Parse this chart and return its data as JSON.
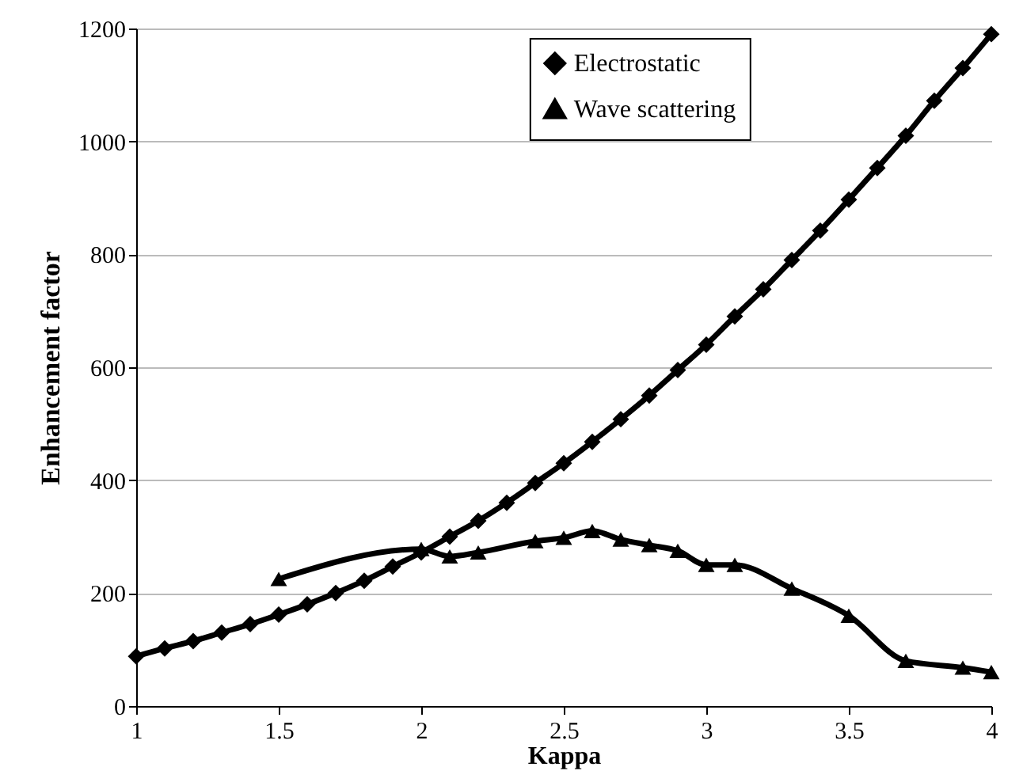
{
  "chart_data": {
    "type": "line",
    "xlabel": "Kappa",
    "ylabel": "Enhancement factor",
    "xlim": [
      1,
      4
    ],
    "xticks": [
      1,
      1.5,
      2,
      2.5,
      3,
      3.5,
      4
    ],
    "ylim": [
      0,
      1200
    ],
    "yticks": [
      0,
      200,
      400,
      600,
      800,
      1000,
      1200
    ],
    "grid": "y",
    "legend": "top",
    "line_style": "solid",
    "series": [
      {
        "name": "Electrostatic",
        "color": "#000000",
        "marker": "diamond",
        "x": [
          1,
          1.1,
          1.2,
          1.3,
          1.4,
          1.5,
          1.6,
          1.7,
          1.8,
          1.9,
          2,
          2.1,
          2.2,
          2.3,
          2.4,
          2.5,
          2.6,
          2.7,
          2.8,
          2.9,
          3,
          3.1,
          3.2,
          3.3,
          3.4,
          3.5,
          3.6,
          3.7,
          3.8,
          3.9,
          4
        ],
        "values": [
          88,
          102,
          115,
          130,
          145,
          162,
          180,
          200,
          222,
          247,
          272,
          300,
          328,
          360,
          395,
          430,
          468,
          508,
          550,
          595,
          640,
          690,
          738,
          790,
          842,
          897,
          953,
          1010,
          1072,
          1130,
          1190
        ]
      },
      {
        "name": "Wave scattering",
        "color": "#000000",
        "marker": "triangle",
        "x": [
          1.5,
          2,
          2.1,
          2.2,
          2.4,
          2.5,
          2.6,
          2.7,
          2.8,
          2.9,
          3,
          3.1,
          3.3,
          3.5,
          3.7,
          3.9,
          4
        ],
        "values": [
          225,
          278,
          265,
          272,
          292,
          298,
          310,
          295,
          285,
          275,
          250,
          250,
          208,
          160,
          80,
          68,
          60
        ]
      }
    ]
  }
}
